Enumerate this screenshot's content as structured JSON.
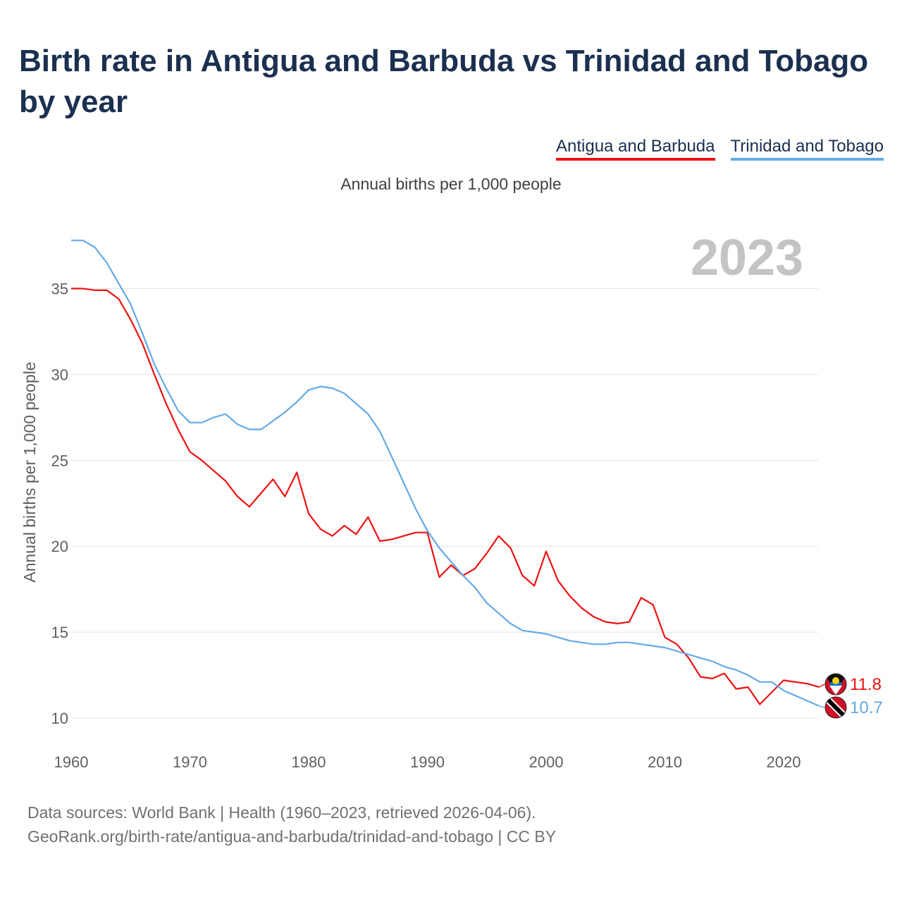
{
  "title": "Birth rate in Antigua and Barbuda vs Trinidad and Tobago by year",
  "subtitle": "Annual births per 1,000 people",
  "footer": {
    "line1": "Data sources: World Bank | Health (1960–2023, retrieved 2026-04-06).",
    "line2": "GeoRank.org/birth-rate/antigua-and-barbuda/trinidad-and-tobago | CC BY"
  },
  "legend": [
    "Antigua and Barbuda",
    "Trinidad and Tobago"
  ],
  "colors": {
    "antigua": "#ee1111",
    "trinidad": "#65a9e6",
    "title": "#1b3050"
  },
  "chart_data": {
    "type": "line",
    "title": "Birth rate in Antigua and Barbuda vs Trinidad and Tobago by year",
    "xlabel": "",
    "ylabel": "Annual births per 1,000 people",
    "year_watermark": "2023",
    "xlim": [
      1960,
      2024
    ],
    "ylim": [
      10,
      38
    ],
    "x_ticks": [
      "1960",
      "1970",
      "1980",
      "1990",
      "2000",
      "2010",
      "2020"
    ],
    "y_ticks": [
      "10",
      "15",
      "20",
      "25",
      "30",
      "35"
    ],
    "x": [
      1960,
      1961,
      1962,
      1963,
      1964,
      1965,
      1966,
      1967,
      1968,
      1969,
      1970,
      1971,
      1972,
      1973,
      1974,
      1975,
      1976,
      1977,
      1978,
      1979,
      1980,
      1981,
      1982,
      1983,
      1984,
      1985,
      1986,
      1987,
      1988,
      1989,
      1990,
      1991,
      1992,
      1993,
      1994,
      1995,
      1996,
      1997,
      1998,
      1999,
      2000,
      2001,
      2002,
      2003,
      2004,
      2005,
      2006,
      2007,
      2008,
      2009,
      2010,
      2011,
      2012,
      2013,
      2014,
      2015,
      2016,
      2017,
      2018,
      2019,
      2020,
      2021,
      2022,
      2023
    ],
    "series": [
      {
        "name": "Antigua and Barbuda",
        "color": "#ee1111",
        "end_label": "11.8",
        "values": [
          35.0,
          35.0,
          34.9,
          34.9,
          34.4,
          33.2,
          31.8,
          30.0,
          28.3,
          26.8,
          25.5,
          25.0,
          24.4,
          23.8,
          22.9,
          22.3,
          23.1,
          23.9,
          22.9,
          24.3,
          21.9,
          21.0,
          20.6,
          21.2,
          20.7,
          21.7,
          20.3,
          20.4,
          20.6,
          20.8,
          20.8,
          18.2,
          18.9,
          18.3,
          18.7,
          19.6,
          20.6,
          19.9,
          18.3,
          17.7,
          19.7,
          18.0,
          17.1,
          16.4,
          15.9,
          15.6,
          15.5,
          15.6,
          17.0,
          16.6,
          14.7,
          14.3,
          13.5,
          12.4,
          12.3,
          12.6,
          11.7,
          11.8,
          10.8,
          11.5,
          12.2,
          12.1,
          12.0,
          11.8
        ]
      },
      {
        "name": "Trinidad and Tobago",
        "color": "#65a9e6",
        "end_label": "10.7",
        "values": [
          37.8,
          37.8,
          37.4,
          36.5,
          35.3,
          34.1,
          32.4,
          30.6,
          29.2,
          27.9,
          27.2,
          27.2,
          27.5,
          27.7,
          27.1,
          26.8,
          26.8,
          27.3,
          27.8,
          28.4,
          29.1,
          29.3,
          29.2,
          28.9,
          28.3,
          27.7,
          26.7,
          25.2,
          23.7,
          22.2,
          20.9,
          19.9,
          19.1,
          18.3,
          17.6,
          16.7,
          16.1,
          15.5,
          15.1,
          15.0,
          14.9,
          14.7,
          14.5,
          14.4,
          14.3,
          14.3,
          14.4,
          14.4,
          14.3,
          14.2,
          14.1,
          13.9,
          13.7,
          13.5,
          13.3,
          13.0,
          12.8,
          12.5,
          12.1,
          12.1,
          11.6,
          11.3,
          11.0,
          10.7
        ]
      }
    ]
  }
}
